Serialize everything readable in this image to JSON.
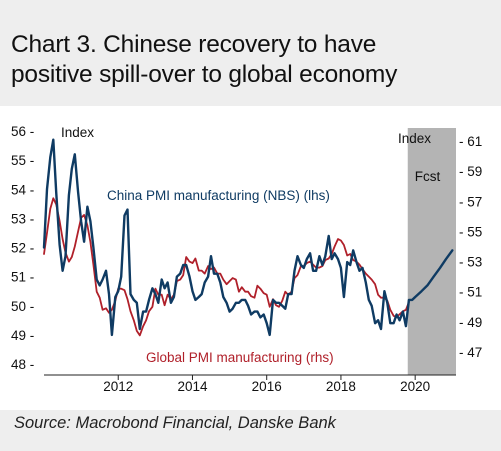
{
  "title_line1": "Chart 3. Chinese recovery to have",
  "title_line2": "positive spill-over to global economy",
  "source": "Source: Macrobond Financial, Danske Bank",
  "colors": {
    "china": "#0f3b63",
    "global": "#b0202a",
    "forecast_band": "#b4b4b4"
  },
  "chart_data": {
    "type": "line",
    "title": "Chart 3. Chinese recovery to have positive spill-over to global economy",
    "left_axis": {
      "label": "Index",
      "ylim": [
        48,
        56
      ],
      "ticks": [
        48,
        49,
        50,
        51,
        52,
        53,
        54,
        55,
        56
      ]
    },
    "right_axis": {
      "label": "Index",
      "ylim": [
        46,
        62
      ],
      "ticks": [
        47,
        49,
        51,
        53,
        55,
        57,
        59,
        61
      ]
    },
    "x_axis": {
      "xlim": [
        2010.0,
        2021.1
      ],
      "ticks": [
        2012,
        2014,
        2016,
        2018,
        2020
      ]
    },
    "forecast": {
      "label": "Fcst",
      "start": 2019.8,
      "end": 2021.1
    },
    "series": [
      {
        "name": "China PMI manufacturing (NBS) (lhs)",
        "axis": "left",
        "points": [
          [
            2010.0,
            52.0
          ],
          [
            2010.08,
            54.0
          ],
          [
            2010.17,
            55.1
          ],
          [
            2010.25,
            55.7
          ],
          [
            2010.33,
            53.9
          ],
          [
            2010.42,
            52.1
          ],
          [
            2010.5,
            51.2
          ],
          [
            2010.58,
            51.7
          ],
          [
            2010.67,
            53.8
          ],
          [
            2010.75,
            54.7
          ],
          [
            2010.83,
            55.2
          ],
          [
            2010.92,
            53.9
          ],
          [
            2011.0,
            52.9
          ],
          [
            2011.08,
            52.2
          ],
          [
            2011.17,
            53.4
          ],
          [
            2011.25,
            52.9
          ],
          [
            2011.33,
            52.0
          ],
          [
            2011.42,
            50.9
          ],
          [
            2011.5,
            50.7
          ],
          [
            2011.58,
            50.9
          ],
          [
            2011.67,
            51.2
          ],
          [
            2011.75,
            50.4
          ],
          [
            2011.83,
            49.0
          ],
          [
            2011.92,
            50.3
          ],
          [
            2012.0,
            50.5
          ],
          [
            2012.08,
            51.0
          ],
          [
            2012.17,
            53.1
          ],
          [
            2012.25,
            53.3
          ],
          [
            2012.33,
            50.4
          ],
          [
            2012.42,
            50.2
          ],
          [
            2012.5,
            50.1
          ],
          [
            2012.58,
            49.2
          ],
          [
            2012.67,
            49.8
          ],
          [
            2012.75,
            49.8
          ],
          [
            2012.83,
            50.2
          ],
          [
            2012.92,
            50.6
          ],
          [
            2013.0,
            50.4
          ],
          [
            2013.08,
            50.1
          ],
          [
            2013.17,
            50.9
          ],
          [
            2013.25,
            50.6
          ],
          [
            2013.33,
            50.8
          ],
          [
            2013.42,
            50.1
          ],
          [
            2013.5,
            50.3
          ],
          [
            2013.58,
            51.0
          ],
          [
            2013.67,
            51.1
          ],
          [
            2013.75,
            51.4
          ],
          [
            2013.83,
            51.4
          ],
          [
            2013.92,
            51.0
          ],
          [
            2014.0,
            50.5
          ],
          [
            2014.08,
            50.2
          ],
          [
            2014.17,
            50.3
          ],
          [
            2014.25,
            50.4
          ],
          [
            2014.33,
            50.8
          ],
          [
            2014.42,
            51.0
          ],
          [
            2014.5,
            51.7
          ],
          [
            2014.58,
            51.1
          ],
          [
            2014.67,
            51.1
          ],
          [
            2014.75,
            50.8
          ],
          [
            2014.83,
            50.3
          ],
          [
            2014.92,
            50.1
          ],
          [
            2015.0,
            49.8
          ],
          [
            2015.08,
            49.9
          ],
          [
            2015.17,
            50.1
          ],
          [
            2015.25,
            50.1
          ],
          [
            2015.33,
            50.2
          ],
          [
            2015.42,
            50.2
          ],
          [
            2015.5,
            50.0
          ],
          [
            2015.58,
            49.7
          ],
          [
            2015.67,
            49.8
          ],
          [
            2015.75,
            49.8
          ],
          [
            2015.83,
            49.6
          ],
          [
            2015.92,
            49.7
          ],
          [
            2016.0,
            49.4
          ],
          [
            2016.08,
            49.0
          ],
          [
            2016.17,
            50.2
          ],
          [
            2016.25,
            50.1
          ],
          [
            2016.33,
            50.1
          ],
          [
            2016.42,
            50.0
          ],
          [
            2016.5,
            49.9
          ],
          [
            2016.58,
            50.4
          ],
          [
            2016.67,
            50.4
          ],
          [
            2016.75,
            51.2
          ],
          [
            2016.83,
            51.7
          ],
          [
            2016.92,
            51.4
          ],
          [
            2017.0,
            51.3
          ],
          [
            2017.08,
            51.6
          ],
          [
            2017.17,
            51.8
          ],
          [
            2017.25,
            51.2
          ],
          [
            2017.33,
            51.2
          ],
          [
            2017.42,
            51.7
          ],
          [
            2017.5,
            51.4
          ],
          [
            2017.58,
            51.7
          ],
          [
            2017.67,
            52.4
          ],
          [
            2017.75,
            51.6
          ],
          [
            2017.83,
            51.8
          ],
          [
            2017.92,
            51.6
          ],
          [
            2018.0,
            51.3
          ],
          [
            2018.08,
            50.3
          ],
          [
            2018.17,
            51.5
          ],
          [
            2018.25,
            51.4
          ],
          [
            2018.33,
            51.9
          ],
          [
            2018.42,
            51.5
          ],
          [
            2018.5,
            51.2
          ],
          [
            2018.58,
            51.3
          ],
          [
            2018.67,
            50.8
          ],
          [
            2018.75,
            50.2
          ],
          [
            2018.83,
            50.0
          ],
          [
            2018.92,
            49.4
          ],
          [
            2019.0,
            49.5
          ],
          [
            2019.08,
            49.2
          ],
          [
            2019.17,
            50.5
          ],
          [
            2019.25,
            50.1
          ],
          [
            2019.33,
            49.4
          ],
          [
            2019.42,
            49.4
          ],
          [
            2019.5,
            49.7
          ],
          [
            2019.58,
            49.5
          ],
          [
            2019.67,
            49.8
          ],
          [
            2019.75,
            49.3
          ],
          [
            2019.83,
            50.2
          ],
          [
            2019.92,
            50.2
          ],
          [
            2020.0,
            50.3
          ],
          [
            2020.17,
            50.5
          ],
          [
            2020.33,
            50.7
          ],
          [
            2020.5,
            51.0
          ],
          [
            2020.67,
            51.3
          ],
          [
            2020.83,
            51.6
          ],
          [
            2021.0,
            51.9
          ]
        ]
      },
      {
        "name": "Global PMI manufacturing (rhs)",
        "axis": "right",
        "points": [
          [
            2010.0,
            53.5
          ],
          [
            2010.08,
            54.9
          ],
          [
            2010.17,
            56.5
          ],
          [
            2010.25,
            57.2
          ],
          [
            2010.33,
            56.8
          ],
          [
            2010.42,
            55.7
          ],
          [
            2010.5,
            54.5
          ],
          [
            2010.58,
            53.6
          ],
          [
            2010.67,
            53.0
          ],
          [
            2010.75,
            53.3
          ],
          [
            2010.83,
            54.0
          ],
          [
            2010.92,
            55.0
          ],
          [
            2011.0,
            55.9
          ],
          [
            2011.08,
            56.1
          ],
          [
            2011.17,
            55.4
          ],
          [
            2011.25,
            54.3
          ],
          [
            2011.33,
            52.8
          ],
          [
            2011.42,
            51.0
          ],
          [
            2011.5,
            50.6
          ],
          [
            2011.58,
            49.8
          ],
          [
            2011.67,
            49.9
          ],
          [
            2011.75,
            49.6
          ],
          [
            2011.83,
            49.8
          ],
          [
            2011.92,
            50.4
          ],
          [
            2012.0,
            51.2
          ],
          [
            2012.08,
            51.2
          ],
          [
            2012.17,
            51.1
          ],
          [
            2012.25,
            50.5
          ],
          [
            2012.33,
            49.7
          ],
          [
            2012.42,
            49.1
          ],
          [
            2012.5,
            48.4
          ],
          [
            2012.58,
            48.1
          ],
          [
            2012.67,
            48.7
          ],
          [
            2012.75,
            49.1
          ],
          [
            2012.83,
            49.7
          ],
          [
            2012.92,
            50.0
          ],
          [
            2013.0,
            51.2
          ],
          [
            2013.08,
            50.8
          ],
          [
            2013.17,
            50.8
          ],
          [
            2013.25,
            50.1
          ],
          [
            2013.33,
            50.8
          ],
          [
            2013.42,
            50.5
          ],
          [
            2013.5,
            50.8
          ],
          [
            2013.58,
            51.7
          ],
          [
            2013.67,
            51.8
          ],
          [
            2013.75,
            52.1
          ],
          [
            2013.83,
            53.3
          ],
          [
            2013.92,
            53.0
          ],
          [
            2014.0,
            52.9
          ],
          [
            2014.08,
            53.2
          ],
          [
            2014.17,
            52.4
          ],
          [
            2014.25,
            52.4
          ],
          [
            2014.33,
            52.2
          ],
          [
            2014.42,
            52.7
          ],
          [
            2014.5,
            52.5
          ],
          [
            2014.58,
            52.6
          ],
          [
            2014.67,
            52.2
          ],
          [
            2014.75,
            52.2
          ],
          [
            2014.83,
            51.8
          ],
          [
            2014.92,
            51.5
          ],
          [
            2015.0,
            51.7
          ],
          [
            2015.08,
            51.9
          ],
          [
            2015.17,
            51.8
          ],
          [
            2015.25,
            51.0
          ],
          [
            2015.33,
            51.3
          ],
          [
            2015.42,
            51.0
          ],
          [
            2015.5,
            51.0
          ],
          [
            2015.58,
            50.7
          ],
          [
            2015.67,
            50.6
          ],
          [
            2015.75,
            51.4
          ],
          [
            2015.83,
            51.2
          ],
          [
            2015.92,
            50.9
          ],
          [
            2016.0,
            50.8
          ],
          [
            2016.08,
            50.0
          ],
          [
            2016.17,
            50.5
          ],
          [
            2016.25,
            50.1
          ],
          [
            2016.33,
            50.0
          ],
          [
            2016.42,
            50.4
          ],
          [
            2016.5,
            51.0
          ],
          [
            2016.58,
            50.8
          ],
          [
            2016.67,
            51.0
          ],
          [
            2016.75,
            51.9
          ],
          [
            2016.83,
            52.1
          ],
          [
            2016.92,
            52.7
          ],
          [
            2017.0,
            52.7
          ],
          [
            2017.08,
            52.9
          ],
          [
            2017.17,
            53.0
          ],
          [
            2017.25,
            52.8
          ],
          [
            2017.33,
            52.6
          ],
          [
            2017.42,
            52.6
          ],
          [
            2017.5,
            52.7
          ],
          [
            2017.58,
            53.1
          ],
          [
            2017.67,
            53.2
          ],
          [
            2017.75,
            53.5
          ],
          [
            2017.83,
            54.0
          ],
          [
            2017.92,
            54.5
          ],
          [
            2018.0,
            54.4
          ],
          [
            2018.08,
            54.1
          ],
          [
            2018.17,
            53.4
          ],
          [
            2018.25,
            53.5
          ],
          [
            2018.33,
            53.1
          ],
          [
            2018.42,
            53.0
          ],
          [
            2018.5,
            52.8
          ],
          [
            2018.58,
            52.5
          ],
          [
            2018.67,
            52.2
          ],
          [
            2018.75,
            52.0
          ],
          [
            2018.83,
            51.8
          ],
          [
            2018.92,
            51.5
          ],
          [
            2019.0,
            50.8
          ],
          [
            2019.08,
            50.6
          ],
          [
            2019.17,
            50.6
          ],
          [
            2019.25,
            50.4
          ],
          [
            2019.33,
            49.8
          ],
          [
            2019.42,
            49.4
          ],
          [
            2019.5,
            49.3
          ],
          [
            2019.58,
            49.5
          ],
          [
            2019.67,
            49.7
          ],
          [
            2019.75,
            49.8
          ],
          [
            2019.83,
            50.3
          ]
        ]
      }
    ],
    "annotations": [
      {
        "text": "China PMI manufacturing (NBS) (lhs)",
        "series": 0
      },
      {
        "text": "Global PMI manufacturing (rhs)",
        "series": 1
      }
    ]
  }
}
